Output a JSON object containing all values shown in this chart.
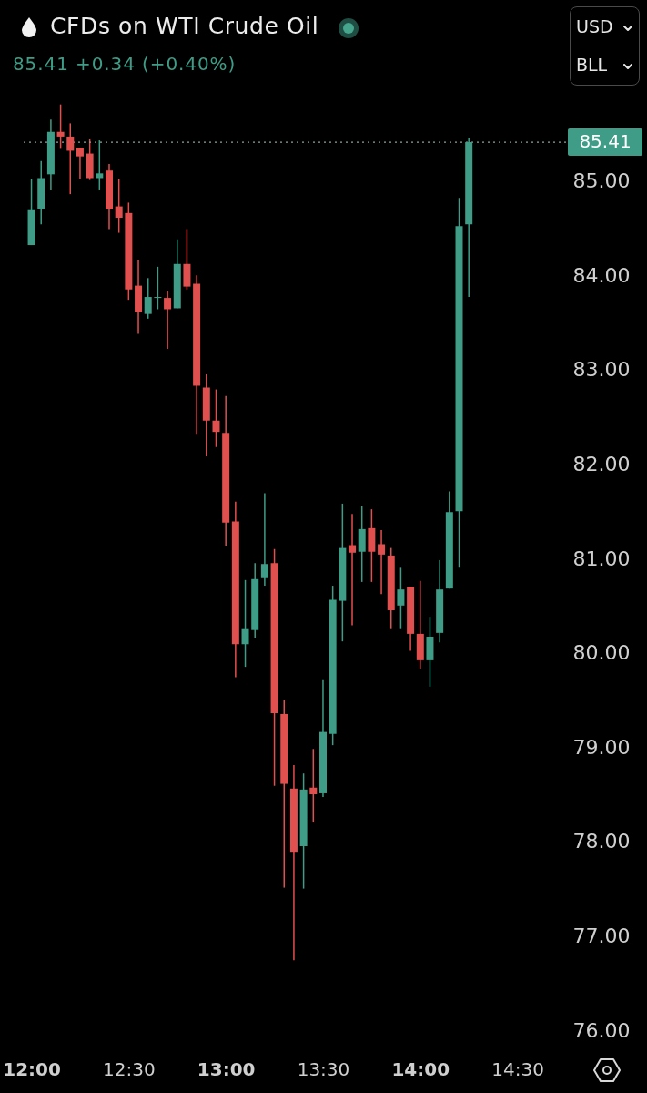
{
  "chart_data": {
    "type": "candlestick",
    "title": "CFDs on WTI Crude Oil",
    "subtitle": "85.41 +0.34 (+0.40%)",
    "annotations": [
      "USD",
      "BLL"
    ],
    "x": [
      12,
      12.05,
      12.1,
      12.15,
      12.2,
      12.25,
      12.3,
      12.35,
      12.4,
      12.45,
      12.5,
      12.55,
      12.6,
      12.65,
      12.7,
      12.75,
      12.8,
      12.85,
      12.9,
      12.95,
      13,
      13.05,
      13.1,
      13.15,
      13.2,
      13.25,
      13.3,
      13.35,
      13.4,
      13.45,
      13.5,
      13.55,
      13.6,
      13.65,
      13.7,
      13.75,
      13.8,
      13.85,
      13.9,
      13.95,
      14,
      14.05,
      14.1,
      14.15,
      14.2,
      14.25
    ],
    "ohlc": [
      [
        84.32,
        85.02,
        84.32,
        84.69
      ],
      [
        84.7,
        85.21,
        84.54,
        85.03
      ],
      [
        85.07,
        85.65,
        84.9,
        85.52
      ],
      [
        85.52,
        85.81,
        85.34,
        85.47
      ],
      [
        85.47,
        85.61,
        84.86,
        85.32
      ],
      [
        85.35,
        85.35,
        85.02,
        85.26
      ],
      [
        85.29,
        85.44,
        85.01,
        85.03
      ],
      [
        85.03,
        85.43,
        84.9,
        85.08
      ],
      [
        85.11,
        85.18,
        84.49,
        84.7
      ],
      [
        84.73,
        85.02,
        84.45,
        84.61
      ],
      [
        84.66,
        84.77,
        83.74,
        83.85
      ],
      [
        83.89,
        84.16,
        83.38,
        83.61
      ],
      [
        83.59,
        83.97,
        83.54,
        83.77
      ],
      [
        83.76,
        84.09,
        83.64,
        83.77
      ],
      [
        83.76,
        83.83,
        83.22,
        83.64
      ],
      [
        83.65,
        84.38,
        83.65,
        84.12
      ],
      [
        84.12,
        84.49,
        83.85,
        83.88
      ],
      [
        83.91,
        84.0,
        82.31,
        82.83
      ],
      [
        82.81,
        82.95,
        82.08,
        82.46
      ],
      [
        82.46,
        82.79,
        82.18,
        82.34
      ],
      [
        82.33,
        82.72,
        81.13,
        81.38
      ],
      [
        81.39,
        81.6,
        79.74,
        80.09
      ],
      [
        80.09,
        80.77,
        79.85,
        80.25
      ],
      [
        80.24,
        80.95,
        80.16,
        80.78
      ],
      [
        80.79,
        81.69,
        80.71,
        80.94
      ],
      [
        80.95,
        81.1,
        78.59,
        79.36
      ],
      [
        79.35,
        79.5,
        77.51,
        78.61
      ],
      [
        78.56,
        78.81,
        76.74,
        77.89
      ],
      [
        77.95,
        78.72,
        77.5,
        78.55
      ],
      [
        78.57,
        78.98,
        78.2,
        78.5
      ],
      [
        78.51,
        79.71,
        78.47,
        79.16
      ],
      [
        79.14,
        80.71,
        79.02,
        80.56
      ],
      [
        80.55,
        81.58,
        80.12,
        81.11
      ],
      [
        81.14,
        81.47,
        80.29,
        81.06
      ],
      [
        81.07,
        81.55,
        80.75,
        81.31
      ],
      [
        81.32,
        81.52,
        80.75,
        81.07
      ],
      [
        81.15,
        81.3,
        80.62,
        81.04
      ],
      [
        81.03,
        81.11,
        80.25,
        80.45
      ],
      [
        80.5,
        80.9,
        80.25,
        80.67
      ],
      [
        80.7,
        80.7,
        80.02,
        80.2
      ],
      [
        80.2,
        80.76,
        79.83,
        79.92
      ],
      [
        79.92,
        80.38,
        79.64,
        80.17
      ],
      [
        80.21,
        80.98,
        80.11,
        80.67
      ],
      [
        80.68,
        81.71,
        80.68,
        81.49
      ],
      [
        81.5,
        84.82,
        80.9,
        84.52
      ],
      [
        84.54,
        85.46,
        83.77,
        85.41
      ]
    ],
    "colors": [
      "#3f9c86",
      "#3f9c86",
      "#3f9c86",
      "#e0504f",
      "#e0504f",
      "#e0504f",
      "#e0504f",
      "#3f9c86",
      "#e0504f",
      "#e0504f",
      "#e0504f",
      "#e0504f",
      "#3f9c86",
      "#3f9c86",
      "#e0504f",
      "#3f9c86",
      "#e0504f",
      "#e0504f",
      "#e0504f",
      "#e0504f",
      "#e0504f",
      "#e0504f",
      "#3f9c86",
      "#3f9c86",
      "#3f9c86",
      "#e0504f",
      "#e0504f",
      "#e0504f",
      "#3f9c86",
      "#e0504f",
      "#3f9c86",
      "#3f9c86",
      "#3f9c86",
      "#e0504f",
      "#3f9c86",
      "#e0504f",
      "#e0504f",
      "#e0504f",
      "#3f9c86",
      "#e0504f",
      "#e0504f",
      "#3f9c86",
      "#3f9c86",
      "#3f9c86",
      "#3f9c86",
      "#3f9c86"
    ],
    "xlim": [
      11.96,
      14.75
    ],
    "xticks": [
      {
        "value": 12,
        "label": "12:00"
      },
      {
        "value": 12.5,
        "label": "12:30"
      },
      {
        "value": 13,
        "label": "13:00"
      },
      {
        "value": 13.5,
        "label": "13:30"
      },
      {
        "value": 14,
        "label": "14:00"
      },
      {
        "value": 14.5,
        "label": "14:30"
      }
    ],
    "ylim": [
      76,
      86.0
    ],
    "yticks": [
      {
        "value": 76,
        "label": "76.00"
      },
      {
        "value": 77,
        "label": "77.00"
      },
      {
        "value": 78,
        "label": "78.00"
      },
      {
        "value": 79,
        "label": "79.00"
      },
      {
        "value": 80,
        "label": "80.00"
      },
      {
        "value": 81,
        "label": "81.00"
      },
      {
        "value": 82,
        "label": "82.00"
      },
      {
        "value": 83,
        "label": "83.00"
      },
      {
        "value": 84,
        "label": "84.00"
      },
      {
        "value": 85,
        "label": "85.00"
      }
    ],
    "ref_lines": [
      {
        "axis": "y",
        "value": 85.41,
        "label": "85.41",
        "color": "#8fa39d",
        "line_style": "dotted"
      }
    ]
  }
}
